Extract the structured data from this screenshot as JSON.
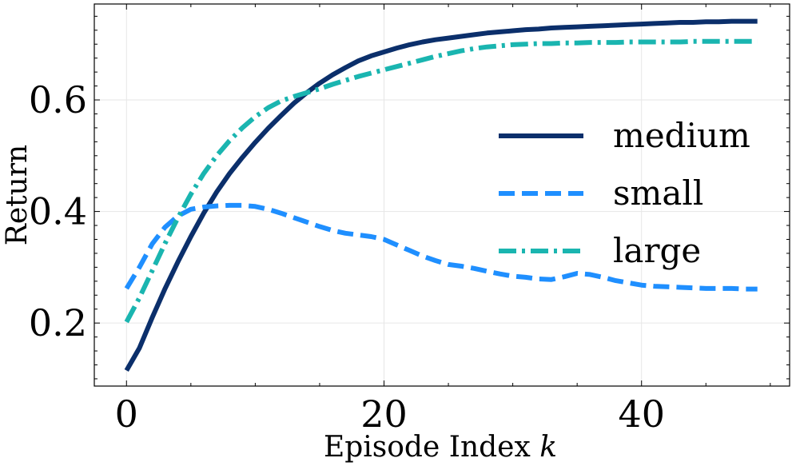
{
  "chart_data": {
    "type": "line",
    "title": "",
    "xlabel": "Episode Index",
    "xlabel_var": "k",
    "ylabel": "Return",
    "xlim": [
      -2.5,
      51.5
    ],
    "ylim": [
      0.087,
      0.772
    ],
    "xticks": [
      0,
      20,
      40
    ],
    "xtick_labels": [
      "0",
      "20",
      "40"
    ],
    "yticks": [
      0.2,
      0.4,
      0.6
    ],
    "ytick_labels": [
      "0.2",
      "0.4",
      "0.6"
    ],
    "grid": true,
    "legend_position": "center-right",
    "x": [
      0,
      1,
      2,
      3,
      4,
      5,
      6,
      7,
      8,
      9,
      10,
      11,
      12,
      13,
      14,
      15,
      16,
      17,
      18,
      19,
      20,
      21,
      22,
      23,
      24,
      25,
      26,
      27,
      28,
      29,
      30,
      31,
      32,
      33,
      34,
      35,
      36,
      37,
      38,
      39,
      40,
      41,
      42,
      43,
      44,
      45,
      46,
      47,
      48,
      49
    ],
    "series": [
      {
        "name": "medium",
        "color": "#0b2f6b",
        "dash": "solid",
        "values": [
          0.115,
          0.155,
          0.21,
          0.262,
          0.31,
          0.355,
          0.397,
          0.435,
          0.468,
          0.497,
          0.524,
          0.549,
          0.572,
          0.594,
          0.613,
          0.63,
          0.645,
          0.658,
          0.67,
          0.679,
          0.686,
          0.693,
          0.699,
          0.704,
          0.708,
          0.711,
          0.714,
          0.717,
          0.72,
          0.722,
          0.724,
          0.726,
          0.727,
          0.729,
          0.73,
          0.731,
          0.732,
          0.733,
          0.734,
          0.735,
          0.736,
          0.737,
          0.738,
          0.739,
          0.739,
          0.74,
          0.74,
          0.741,
          0.741,
          0.741
        ]
      },
      {
        "name": "small",
        "color": "#1f8fff",
        "dash": "dashed",
        "values": [
          0.262,
          0.3,
          0.342,
          0.372,
          0.392,
          0.404,
          0.408,
          0.41,
          0.411,
          0.411,
          0.409,
          0.404,
          0.397,
          0.389,
          0.381,
          0.373,
          0.366,
          0.361,
          0.358,
          0.355,
          0.35,
          0.34,
          0.33,
          0.32,
          0.312,
          0.305,
          0.302,
          0.298,
          0.293,
          0.288,
          0.284,
          0.282,
          0.279,
          0.278,
          0.283,
          0.289,
          0.287,
          0.282,
          0.276,
          0.272,
          0.268,
          0.266,
          0.265,
          0.264,
          0.263,
          0.262,
          0.262,
          0.262,
          0.261,
          0.261
        ]
      },
      {
        "name": "large",
        "color": "#1ab5b0",
        "dash": "dashdot",
        "values": [
          0.202,
          0.245,
          0.294,
          0.343,
          0.389,
          0.431,
          0.468,
          0.5,
          0.527,
          0.55,
          0.57,
          0.586,
          0.598,
          0.606,
          0.613,
          0.62,
          0.628,
          0.635,
          0.642,
          0.648,
          0.654,
          0.66,
          0.666,
          0.672,
          0.678,
          0.683,
          0.688,
          0.692,
          0.695,
          0.697,
          0.699,
          0.7,
          0.701,
          0.701,
          0.702,
          0.702,
          0.703,
          0.703,
          0.703,
          0.704,
          0.704,
          0.704,
          0.704,
          0.704,
          0.705,
          0.705,
          0.705,
          0.705,
          0.705,
          0.705
        ]
      }
    ]
  }
}
